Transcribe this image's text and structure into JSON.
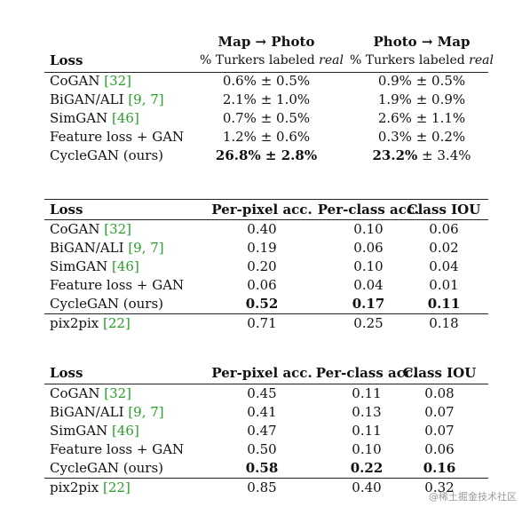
{
  "table1": {
    "header": {
      "loss": "Loss",
      "col1_title": "Map → Photo",
      "col1_sub_prefix": "% Turkers labeled ",
      "col1_sub_italic": "real",
      "col2_title": "Photo → Map",
      "col2_sub_prefix": "% Turkers labeled ",
      "col2_sub_italic": "real"
    },
    "rows": [
      {
        "name": "CoGAN ",
        "ref": "[32]",
        "v1": "0.6% ± 0.5%",
        "v2": "0.9% ± 0.5%"
      },
      {
        "name": "BiGAN/ALI ",
        "ref": "[9, 7]",
        "v1": "2.1% ± 1.0%",
        "v2": "1.9% ± 0.9%"
      },
      {
        "name": "SimGAN ",
        "ref": "[46]",
        "v1": "0.7% ± 0.5%",
        "v2": "2.6% ± 1.1%"
      },
      {
        "name": "Feature loss + GAN",
        "ref": "",
        "v1": "1.2% ± 0.6%",
        "v2": "0.3% ± 0.2%"
      },
      {
        "name": "CycleGAN (ours)",
        "ref": "",
        "v1": "26.8% ± 2.8%",
        "v2_bold": "23.2%",
        "v2_rest": " ± 3.4%"
      }
    ]
  },
  "table2": {
    "header": {
      "loss": "Loss",
      "c1": "Per-pixel acc.",
      "c2": "Per-class acc.",
      "c3": "Class IOU"
    },
    "rows": [
      {
        "name": "CoGAN ",
        "ref": "[32]",
        "v1": "0.40",
        "v2": "0.10",
        "v3": "0.06"
      },
      {
        "name": "BiGAN/ALI ",
        "ref": "[9, 7]",
        "v1": "0.19",
        "v2": "0.06",
        "v3": "0.02"
      },
      {
        "name": "SimGAN ",
        "ref": "[46]",
        "v1": "0.20",
        "v2": "0.10",
        "v3": "0.04"
      },
      {
        "name": "Feature loss + GAN",
        "ref": "",
        "v1": "0.06",
        "v2": "0.04",
        "v3": "0.01"
      },
      {
        "name": "CycleGAN (ours)",
        "ref": "",
        "v1": "0.52",
        "v2": "0.17",
        "v3": "0.11"
      },
      {
        "name": "pix2pix ",
        "ref": "[22]",
        "v1": "0.71",
        "v2": "0.25",
        "v3": "0.18"
      }
    ]
  },
  "table3": {
    "header": {
      "loss": "Loss",
      "c1": "Per-pixel acc.",
      "c2": "Per-class acc.",
      "c3": "Class IOU"
    },
    "rows": [
      {
        "name": "CoGAN ",
        "ref": "[32]",
        "v1": "0.45",
        "v2": "0.11",
        "v3": "0.08"
      },
      {
        "name": "BiGAN/ALI ",
        "ref": "[9, 7]",
        "v1": "0.41",
        "v2": "0.13",
        "v3": "0.07"
      },
      {
        "name": "SimGAN ",
        "ref": "[46]",
        "v1": "0.47",
        "v2": "0.11",
        "v3": "0.07"
      },
      {
        "name": "Feature loss + GAN",
        "ref": "",
        "v1": "0.50",
        "v2": "0.10",
        "v3": "0.06"
      },
      {
        "name": "CycleGAN (ours)",
        "ref": "",
        "v1": "0.58",
        "v2": "0.22",
        "v3": "0.16"
      },
      {
        "name": "pix2pix ",
        "ref": "[22]",
        "v1": "0.85",
        "v2": "0.40",
        "v3": "0.32"
      }
    ]
  },
  "watermark": "@稀土掘金技术社区",
  "colors": {
    "citation": "#2a9d2a",
    "text": "#111111",
    "rule": "#222222"
  }
}
